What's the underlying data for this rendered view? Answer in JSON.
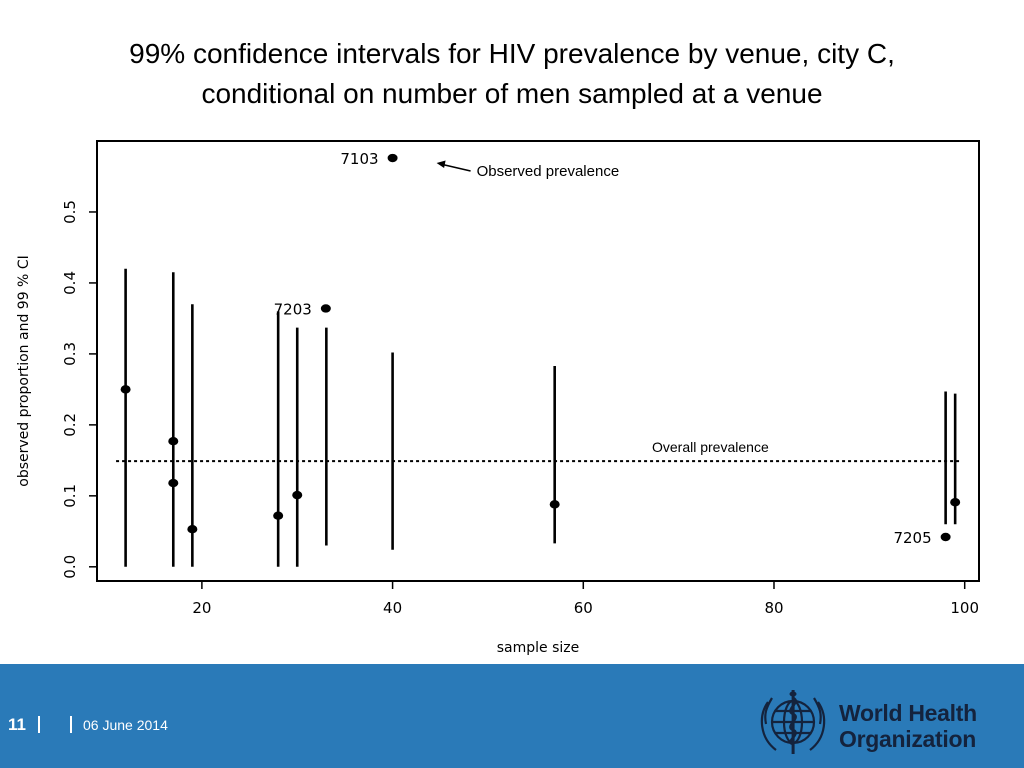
{
  "slide": {
    "title_line1": "99% confidence intervals for HIV prevalence by venue, city C,",
    "title_line2": "conditional on number of men sampled at a venue",
    "page_number": "11",
    "date": "06 June 2014",
    "org_line1": "World Health",
    "org_line2": "Organization"
  },
  "colors": {
    "footer_blue": "#2a7ab8",
    "logo_navy": "#14233d"
  },
  "chart_data": {
    "type": "scatter",
    "xlabel": "sample size",
    "ylabel": "observed proportion and  99 % CI",
    "xlim": [
      9,
      101.5
    ],
    "ylim": [
      -0.02,
      0.6
    ],
    "x_ticks": [
      20,
      40,
      60,
      80,
      100
    ],
    "y_ticks": [
      0.0,
      0.1,
      0.2,
      0.3,
      0.4,
      0.5
    ],
    "x_tick_labels": [
      "20",
      "40",
      "60",
      "80",
      "100"
    ],
    "y_tick_labels": [
      "0.0",
      "0.1",
      "0.2",
      "0.3",
      "0.4",
      "0.5"
    ],
    "points": [
      {
        "x": 12,
        "y": 0.25,
        "ci_low": 0.0,
        "ci_high": 0.42
      },
      {
        "x": 17,
        "y": 0.177,
        "ci_low": 0.0,
        "ci_high": 0.415
      },
      {
        "x": 17,
        "y": 0.118
      },
      {
        "x": 19,
        "y": 0.053,
        "ci_low": 0.0,
        "ci_high": 0.37
      },
      {
        "x": 28,
        "y": 0.072,
        "ci_low": 0.0,
        "ci_high": 0.36
      },
      {
        "x": 30,
        "y": 0.101,
        "ci_low": 0.0,
        "ci_high": 0.337
      },
      {
        "x": 33,
        "y": 0.364,
        "ci_low": 0.03,
        "ci_high": 0.337,
        "label": "7203"
      },
      {
        "x": 40,
        "y": 0.576,
        "ci_low": 0.024,
        "ci_high": 0.302,
        "label": "7103"
      },
      {
        "x": 57,
        "y": 0.088,
        "ci_low": 0.033,
        "ci_high": 0.283
      },
      {
        "x": 98,
        "y": 0.042,
        "ci_low": 0.06,
        "ci_high": 0.247,
        "label": "7205"
      },
      {
        "x": 99,
        "y": 0.091,
        "ci_low": 0.06,
        "ci_high": 0.244
      }
    ],
    "reference_line": {
      "y": 0.149,
      "style": "dotted",
      "label": "Overall prevalence"
    },
    "annotations": [
      {
        "text": "Observed prevalence",
        "points_to": "7103"
      }
    ],
    "grid": false
  }
}
